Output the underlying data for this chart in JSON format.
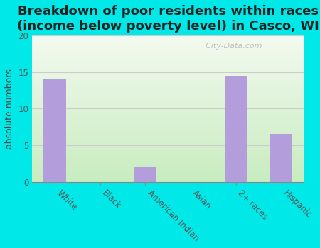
{
  "title": "Breakdown of poor residents within races\n(income below poverty level) in Casco, WI",
  "categories": [
    "White",
    "Black",
    "American Indian",
    "Asian",
    "2+ races",
    "Hispanic"
  ],
  "values": [
    14,
    0,
    2,
    0,
    14.5,
    6.5
  ],
  "bar_color": "#b39ddb",
  "ylabel": "absolute numbers",
  "ylabel_color": "#444444",
  "ylim": [
    0,
    20
  ],
  "yticks": [
    0,
    5,
    10,
    15,
    20
  ],
  "background_color": "#00e8e8",
  "plot_bg_top_left": "#e8f5e9",
  "plot_bg_bottom_right": "#d8efd8",
  "grid_color": "#cccccc",
  "title_fontsize": 13,
  "title_color": "#222222",
  "axis_label_fontsize": 9,
  "tick_fontsize": 8.5,
  "watermark": "  City-Data.com",
  "watermark_color": "#aaaaaa"
}
